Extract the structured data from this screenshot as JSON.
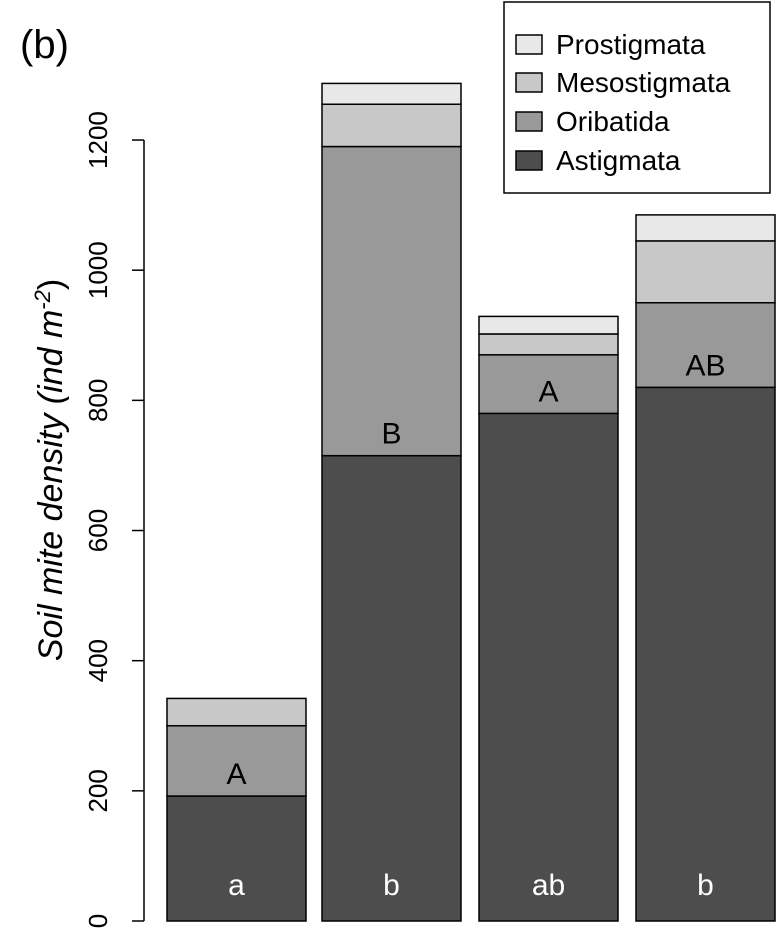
{
  "chart_data": {
    "type": "bar",
    "stacked": true,
    "panel_label": "(b)",
    "title": "",
    "xlabel": "",
    "ylabel_main": "Soil mite density ",
    "ylabel_unit_open": "(ind m",
    "ylabel_sup": "-2",
    "ylabel_close": ")",
    "ylim": [
      0,
      1300
    ],
    "yticks": [
      0,
      200,
      400,
      600,
      800,
      1000,
      1200
    ],
    "grid": false,
    "legend_position": "top-right",
    "legend_order": [
      "Prostigmata",
      "Mesostigmata",
      "Oribatida",
      "Astigmata"
    ],
    "colors": {
      "Astigmata": "#4d4d4d",
      "Oribatida": "#999999",
      "Mesostigmata": "#c8c8c8",
      "Prostigmata": "#e8e8e8"
    },
    "categories": [
      "",
      "",
      "",
      ""
    ],
    "series": [
      {
        "name": "Astigmata",
        "values": [
          192,
          715,
          780,
          820
        ]
      },
      {
        "name": "Oribatida",
        "values": [
          108,
          475,
          90,
          130
        ]
      },
      {
        "name": "Mesostigmata",
        "values": [
          42,
          65,
          32,
          95
        ]
      },
      {
        "name": "Prostigmata",
        "values": [
          0,
          32,
          27,
          40
        ]
      }
    ],
    "annotations_lower": [
      "a",
      "b",
      "ab",
      "b"
    ],
    "annotations_upper": [
      "A",
      "B",
      "A",
      "AB"
    ]
  }
}
